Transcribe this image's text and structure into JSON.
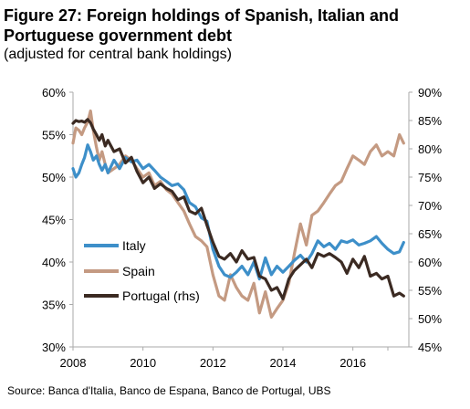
{
  "title": "Figure 27: Foreign holdings of Spanish, Italian and Portuguese government debt",
  "subtitle": "(adjusted for central bank holdings)",
  "source": "Source:  Banca d'Italia, Banco de Espana, Banco de Portugal, UBS",
  "colors": {
    "italy": "#3d8fc9",
    "spain": "#c49a82",
    "portugal": "#3b2a22",
    "axis": "#aaaaaa"
  },
  "chart_data": {
    "type": "line",
    "xlabel": "",
    "ylabel": "",
    "xlim": [
      2008,
      2017.6
    ],
    "ylim_left": [
      30,
      60
    ],
    "ylim_right": [
      45,
      90
    ],
    "x_ticks": [
      2008,
      2010,
      2012,
      2014,
      2016
    ],
    "x_tick_labels": [
      "2008",
      "2010",
      "2012",
      "2014",
      "2016"
    ],
    "y_left_ticks": [
      30,
      35,
      40,
      45,
      50,
      55,
      60
    ],
    "y_left_tick_labels": [
      "30%",
      "35%",
      "40%",
      "45%",
      "50%",
      "55%",
      "60%"
    ],
    "y_right_ticks": [
      45,
      50,
      55,
      60,
      65,
      70,
      75,
      80,
      85,
      90
    ],
    "y_right_tick_labels": [
      "45%",
      "50%",
      "55%",
      "60%",
      "65%",
      "70%",
      "75%",
      "80%",
      "85%",
      "90%"
    ],
    "legend_position": "lower-left",
    "series": [
      {
        "name": "Italy",
        "axis": "left",
        "color": "#3d8fc9",
        "x": [
          2008.0,
          2008.08,
          2008.17,
          2008.25,
          2008.33,
          2008.42,
          2008.5,
          2008.58,
          2008.67,
          2008.75,
          2008.83,
          2008.92,
          2009.0,
          2009.17,
          2009.33,
          2009.5,
          2009.67,
          2009.83,
          2010.0,
          2010.17,
          2010.33,
          2010.5,
          2010.67,
          2010.83,
          2011.0,
          2011.17,
          2011.33,
          2011.5,
          2011.67,
          2011.83,
          2012.0,
          2012.17,
          2012.33,
          2012.5,
          2012.67,
          2012.83,
          2013.0,
          2013.17,
          2013.33,
          2013.5,
          2013.67,
          2013.83,
          2014.0,
          2014.17,
          2014.33,
          2014.5,
          2014.67,
          2014.83,
          2015.0,
          2015.17,
          2015.33,
          2015.5,
          2015.67,
          2015.83,
          2016.0,
          2016.17,
          2016.33,
          2016.5,
          2016.67,
          2016.83,
          2017.0,
          2017.17,
          2017.33,
          2017.45
        ],
        "values": [
          51.0,
          50.0,
          50.5,
          51.5,
          52.3,
          53.8,
          53.0,
          52.0,
          52.5,
          51.5,
          50.8,
          51.5,
          50.5,
          52.0,
          51.0,
          52.3,
          51.8,
          52.0,
          51.0,
          51.5,
          50.8,
          50.0,
          49.5,
          49.0,
          49.2,
          48.5,
          47.0,
          46.5,
          45.2,
          44.8,
          41.5,
          39.5,
          38.5,
          38.2,
          38.8,
          39.5,
          38.5,
          40.0,
          38.0,
          40.5,
          38.5,
          39.5,
          38.8,
          39.5,
          40.2,
          40.8,
          40.0,
          41.0,
          42.5,
          41.8,
          42.2,
          41.5,
          42.5,
          42.3,
          42.6,
          42.0,
          42.2,
          42.5,
          43.0,
          42.2,
          41.5,
          41.0,
          41.2,
          42.3
        ]
      },
      {
        "name": "Spain",
        "axis": "left",
        "color": "#c49a82",
        "x": [
          2008.0,
          2008.08,
          2008.17,
          2008.25,
          2008.33,
          2008.42,
          2008.5,
          2008.58,
          2008.67,
          2008.75,
          2008.83,
          2008.92,
          2009.0,
          2009.17,
          2009.33,
          2009.5,
          2009.67,
          2009.83,
          2010.0,
          2010.17,
          2010.33,
          2010.5,
          2010.67,
          2010.83,
          2011.0,
          2011.17,
          2011.33,
          2011.5,
          2011.67,
          2011.83,
          2012.0,
          2012.17,
          2012.33,
          2012.5,
          2012.67,
          2012.83,
          2013.0,
          2013.17,
          2013.33,
          2013.5,
          2013.67,
          2013.83,
          2014.0,
          2014.17,
          2014.33,
          2014.5,
          2014.67,
          2014.83,
          2015.0,
          2015.17,
          2015.33,
          2015.5,
          2015.67,
          2015.83,
          2016.0,
          2016.17,
          2016.33,
          2016.5,
          2016.67,
          2016.83,
          2017.0,
          2017.17,
          2017.33,
          2017.45
        ],
        "values": [
          54.0,
          55.8,
          55.5,
          55.0,
          55.8,
          56.5,
          57.8,
          55.5,
          53.5,
          52.0,
          53.0,
          51.5,
          50.5,
          51.0,
          51.5,
          52.5,
          52.0,
          51.0,
          50.0,
          50.5,
          49.0,
          49.5,
          48.5,
          48.0,
          47.0,
          46.0,
          44.5,
          43.0,
          42.5,
          41.8,
          38.5,
          36.0,
          35.5,
          38.5,
          37.0,
          36.0,
          35.5,
          37.5,
          34.0,
          36.5,
          33.5,
          34.5,
          35.5,
          37.5,
          41.0,
          44.5,
          42.0,
          45.5,
          46.0,
          47.0,
          48.0,
          49.0,
          49.5,
          51.0,
          52.5,
          52.0,
          51.5,
          53.0,
          53.8,
          52.5,
          53.0,
          52.5,
          55.0,
          54.0
        ]
      },
      {
        "name": "Portugal (rhs)",
        "axis": "right",
        "color": "#3b2a22",
        "x": [
          2008.0,
          2008.08,
          2008.17,
          2008.25,
          2008.33,
          2008.42,
          2008.5,
          2008.58,
          2008.67,
          2008.75,
          2008.83,
          2008.92,
          2009.0,
          2009.17,
          2009.33,
          2009.5,
          2009.67,
          2009.83,
          2010.0,
          2010.17,
          2010.33,
          2010.5,
          2010.67,
          2010.83,
          2011.0,
          2011.17,
          2011.33,
          2011.5,
          2011.67,
          2011.83,
          2012.0,
          2012.17,
          2012.33,
          2012.5,
          2012.67,
          2012.83,
          2013.0,
          2013.17,
          2013.33,
          2013.5,
          2013.67,
          2013.83,
          2014.0,
          2014.17,
          2014.33,
          2014.5,
          2014.67,
          2014.83,
          2015.0,
          2015.17,
          2015.33,
          2015.5,
          2015.67,
          2015.83,
          2016.0,
          2016.17,
          2016.33,
          2016.5,
          2016.67,
          2016.83,
          2017.0,
          2017.17,
          2017.33,
          2017.45
        ],
        "values": [
          84.5,
          85.0,
          84.8,
          84.9,
          84.7,
          85.2,
          84.6,
          83.5,
          82.5,
          81.5,
          82.5,
          80.5,
          81.5,
          79.5,
          80.0,
          77.5,
          78.5,
          76.0,
          74.0,
          75.0,
          73.0,
          73.8,
          73.0,
          72.5,
          71.0,
          71.5,
          69.0,
          68.5,
          69.5,
          66.5,
          63.5,
          61.0,
          60.5,
          61.5,
          60.0,
          62.0,
          60.5,
          60.8,
          57.5,
          57.0,
          55.0,
          55.5,
          53.5,
          57.0,
          58.5,
          59.5,
          60.5,
          59.0,
          61.5,
          61.0,
          61.5,
          60.8,
          60.0,
          58.0,
          60.5,
          59.0,
          61.0,
          57.5,
          58.0,
          57.0,
          57.5,
          54.0,
          54.5,
          54.0
        ]
      }
    ]
  }
}
